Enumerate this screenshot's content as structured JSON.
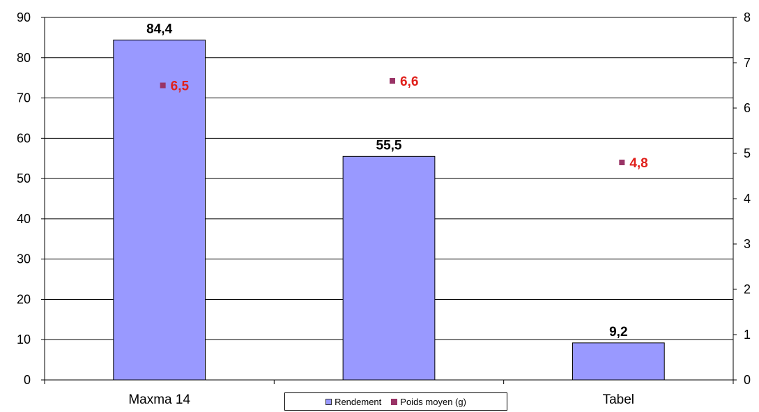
{
  "chart_data": {
    "type": "bar",
    "categories": [
      "Maxma 14",
      "",
      "Tabel"
    ],
    "series": [
      {
        "name": "Rendement",
        "kind": "bar",
        "axis": "left",
        "color": "#9999ff",
        "values": [
          84.4,
          55.5,
          9.2
        ],
        "labels": [
          "84,4",
          "55,5",
          "9,2"
        ]
      },
      {
        "name": "Poids moyen (g)",
        "kind": "point",
        "axis": "right",
        "color": "#993366",
        "label_color": "#e0201b",
        "values": [
          6.5,
          6.6,
          4.8
        ],
        "labels": [
          "6,5",
          "6,6",
          "4,8"
        ]
      }
    ],
    "y_left": {
      "min": 0,
      "max": 90,
      "ticks": [
        0,
        10,
        20,
        30,
        40,
        50,
        60,
        70,
        80,
        90
      ]
    },
    "y_right": {
      "min": 0,
      "max": 8,
      "ticks": [
        0,
        1,
        2,
        3,
        4,
        5,
        6,
        7,
        8
      ]
    },
    "grid": true,
    "legend_position": "bottom"
  },
  "legend": {
    "items": [
      {
        "label": "Rendement",
        "color": "#9999ff"
      },
      {
        "label": "Poids moyen (g)",
        "color": "#993366"
      }
    ]
  }
}
